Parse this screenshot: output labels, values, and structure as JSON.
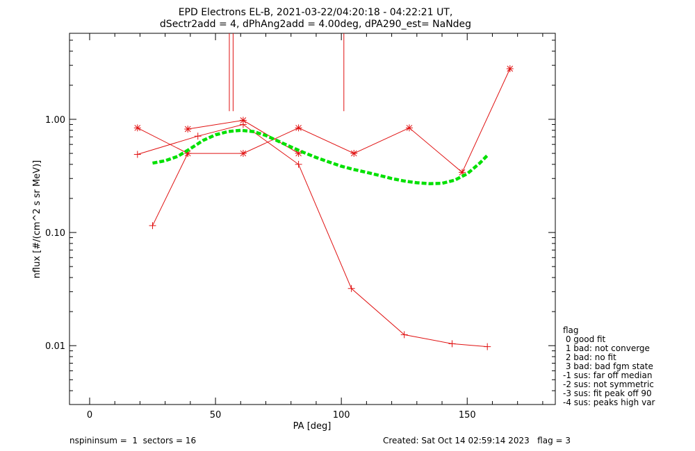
{
  "chart_data": {
    "type": "scatter",
    "title_line1": "EPD Electrons EL-B, 2021-03-22/04:20:18 - 04:22:21 UT,",
    "title_line2": "dSectr2add = 4, dPhAng2add = 4.00deg, dPA290_est=   NaNdeg",
    "xlabel": "PA [deg]",
    "ylabel": "nflux [#/(cm^2 s sr MeV)]",
    "xlim": [
      -8,
      185
    ],
    "ylim_log10": [
      -2.52,
      0.76
    ],
    "y_log_scale": true,
    "x_ticks": [
      0,
      50,
      100,
      150
    ],
    "x_tick_labels": [
      "0",
      "50",
      "100",
      "150"
    ],
    "y_ticks": [
      0.01,
      0.1,
      1.0
    ],
    "y_tick_labels": [
      "0.01",
      "0.10",
      "1.00"
    ],
    "series": [
      {
        "marker": "star",
        "color": "#e01010",
        "x": [
          19,
          39,
          61,
          83,
          105,
          127,
          148,
          167
        ],
        "y": [
          0.84,
          0.5,
          0.5,
          0.84,
          0.5,
          0.84,
          0.34,
          2.8
        ]
      },
      {
        "marker": "star",
        "color": "#e01010",
        "x": [
          39,
          61,
          83
        ],
        "y": [
          0.82,
          0.98,
          0.5
        ]
      },
      {
        "marker": "plus",
        "color": "#e01010",
        "x": [
          19,
          43,
          61,
          83,
          104,
          125,
          144,
          158
        ],
        "y": [
          0.49,
          0.71,
          0.9,
          0.4,
          0.032,
          0.0125,
          0.0104,
          0.0098
        ]
      },
      {
        "marker": "plus",
        "color": "#e01010",
        "x": [
          25,
          39
        ],
        "y": [
          0.115,
          0.5
        ]
      },
      {
        "marker": "none",
        "color": "#00e000",
        "dashed": true,
        "x": [
          25,
          30,
          35,
          40,
          45,
          50,
          55,
          60,
          65,
          70,
          75,
          80,
          85,
          90,
          95,
          100,
          105,
          110,
          115,
          120,
          125,
          130,
          135,
          140,
          145,
          150,
          155,
          158
        ],
        "y": [
          0.41,
          0.43,
          0.47,
          0.55,
          0.65,
          0.73,
          0.78,
          0.8,
          0.78,
          0.72,
          0.64,
          0.57,
          0.51,
          0.46,
          0.42,
          0.385,
          0.36,
          0.34,
          0.32,
          0.3,
          0.285,
          0.275,
          0.27,
          0.272,
          0.29,
          0.33,
          0.41,
          0.48
        ]
      }
    ],
    "vertical_lines": [
      {
        "x": 55.5,
        "y_from": 1.18,
        "color": "#e01010"
      },
      {
        "x": 57,
        "y_from": 1.18,
        "color": "#e01010"
      },
      {
        "x": 101,
        "y_from": 1.18,
        "color": "#e01010"
      }
    ]
  },
  "legend": {
    "title": "flag",
    "items": [
      " 0 good fit",
      " 1 bad: not converge",
      " 2 bad: no fit",
      " 3 bad: bad fgm state",
      "-1 sus: far off median",
      "-2 sus: not symmetric",
      "-3 sus: fit peak off 90",
      "-4 sus: peaks high var"
    ]
  },
  "footer": {
    "left": "nspininsum =  1  sectors = 16",
    "right": "Created: Sat Oct 14 02:59:14 2023   flag = 3"
  }
}
